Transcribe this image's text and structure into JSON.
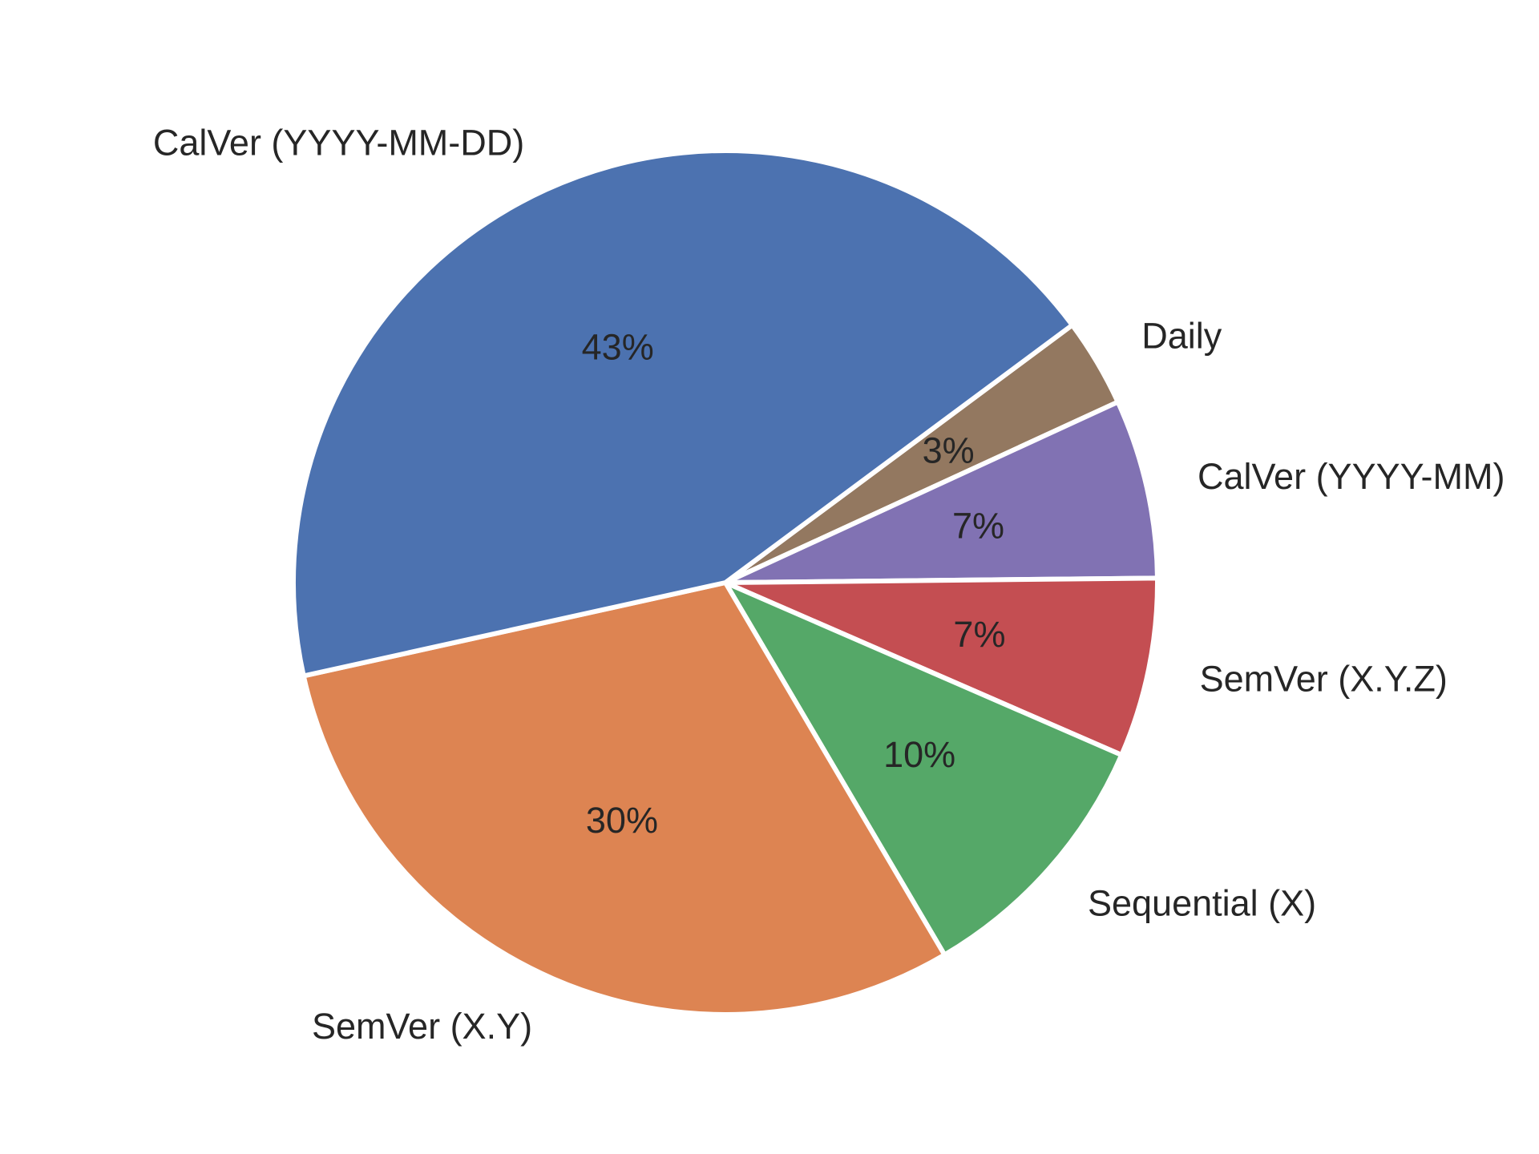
{
  "chart_data": {
    "type": "pie",
    "title": "",
    "startangle_deg": 90,
    "direction": "clockwise",
    "slices": [
      {
        "label": "Daily",
        "value": 3.3,
        "pct_label": "3%",
        "color": "#937860"
      },
      {
        "label": "CalVer (YYYY-MM)",
        "value": 6.7,
        "pct_label": "7%",
        "color": "#8172B3"
      },
      {
        "label": "SemVer (X.Y.Z)",
        "value": 6.7,
        "pct_label": "7%",
        "color": "#C44E52"
      },
      {
        "label": "Sequential (X)",
        "value": 10.0,
        "pct_label": "10%",
        "color": "#55A868"
      },
      {
        "label": "SemVer (X.Y)",
        "value": 30.0,
        "pct_label": "30%",
        "color": "#DD8452"
      },
      {
        "label": "CalVer (YYYY-MM-DD)",
        "value": 43.3,
        "pct_label": "43%",
        "color": "#4C72B0"
      }
    ],
    "edge_color": "#ffffff",
    "legend": false
  }
}
